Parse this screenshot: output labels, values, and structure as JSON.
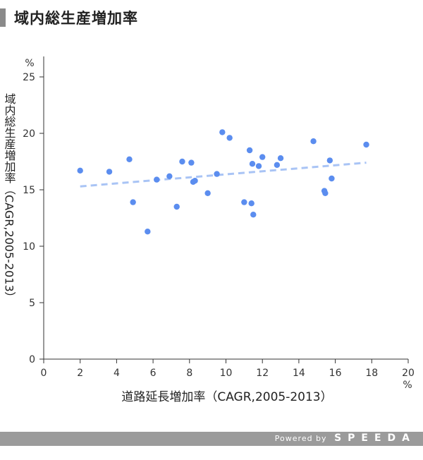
{
  "title": "域内総生産増加率",
  "footer": {
    "powered_by": "Powered by",
    "brand": "SPEEDA"
  },
  "chart_data": {
    "type": "scatter",
    "xlabel": "道路延長増加率（CAGR,2005-2013）",
    "ylabel": "域内総生産増加率（CAGR,2005-2013）",
    "x_unit": "%",
    "y_unit": "%",
    "xlim": [
      0,
      20
    ],
    "ylim": [
      0,
      25
    ],
    "x_ticks": [
      "0",
      "2",
      "4",
      "6",
      "8",
      "10",
      "12",
      "14",
      "16",
      "18",
      "20"
    ],
    "y_ticks": [
      "0",
      "5",
      "10",
      "15",
      "20",
      "25"
    ],
    "grid": false,
    "point_color": "#5b8def",
    "trend_color": "#a9c4f5",
    "trendline": {
      "x": [
        2.0,
        17.7
      ],
      "y": [
        15.3,
        17.4
      ]
    },
    "points": [
      {
        "x": 2.0,
        "y": 16.7
      },
      {
        "x": 3.6,
        "y": 16.6
      },
      {
        "x": 4.7,
        "y": 17.7
      },
      {
        "x": 4.9,
        "y": 13.9
      },
      {
        "x": 5.7,
        "y": 11.3
      },
      {
        "x": 6.2,
        "y": 15.9
      },
      {
        "x": 6.9,
        "y": 16.2
      },
      {
        "x": 7.3,
        "y": 13.5
      },
      {
        "x": 7.6,
        "y": 17.5
      },
      {
        "x": 8.1,
        "y": 17.4
      },
      {
        "x": 8.2,
        "y": 15.7
      },
      {
        "x": 8.3,
        "y": 15.8
      },
      {
        "x": 9.0,
        "y": 14.7
      },
      {
        "x": 9.5,
        "y": 16.4
      },
      {
        "x": 9.8,
        "y": 20.1
      },
      {
        "x": 10.2,
        "y": 19.6
      },
      {
        "x": 11.0,
        "y": 13.9
      },
      {
        "x": 11.3,
        "y": 18.5
      },
      {
        "x": 11.4,
        "y": 13.8
      },
      {
        "x": 11.45,
        "y": 17.3
      },
      {
        "x": 11.5,
        "y": 12.8
      },
      {
        "x": 11.8,
        "y": 17.1
      },
      {
        "x": 12.0,
        "y": 17.9
      },
      {
        "x": 12.8,
        "y": 17.2
      },
      {
        "x": 13.0,
        "y": 17.8
      },
      {
        "x": 14.8,
        "y": 19.3
      },
      {
        "x": 15.4,
        "y": 14.9
      },
      {
        "x": 15.45,
        "y": 14.7
      },
      {
        "x": 15.7,
        "y": 17.6
      },
      {
        "x": 15.8,
        "y": 16.0
      },
      {
        "x": 17.7,
        "y": 19.0
      }
    ]
  }
}
